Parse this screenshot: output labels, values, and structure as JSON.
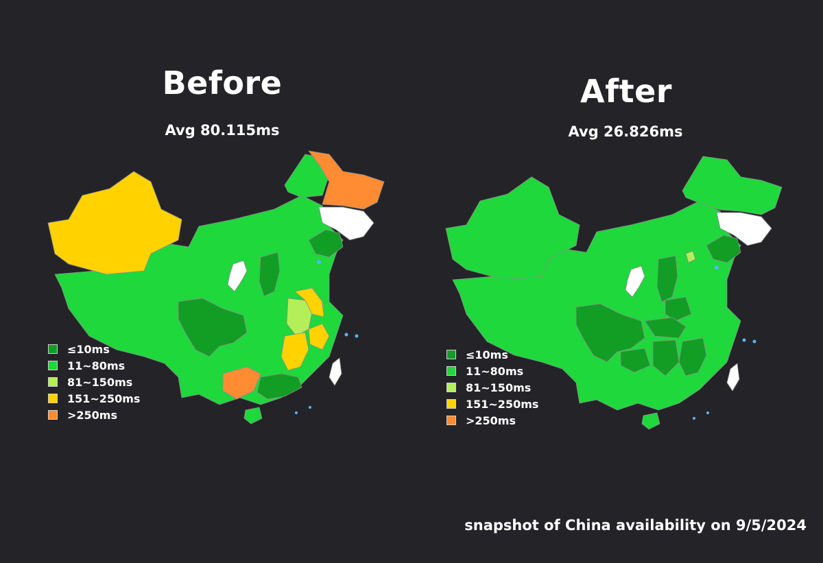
{
  "colors": {
    "le10": "#129d25",
    "c11_80": "#1ed83c",
    "c81_150": "#b4ef5a",
    "c151_250": "#ffd200",
    "gt250": "#ff8c32",
    "nodata": "#ffffff",
    "background": "#242428",
    "border": "#8d8d8d",
    "water": "#5ab4ff"
  },
  "legend": [
    {
      "label": "≤10ms",
      "color": "#129d25"
    },
    {
      "label": "11~80ms",
      "color": "#1ed83c"
    },
    {
      "label": "81~150ms",
      "color": "#b4ef5a"
    },
    {
      "label": "151~250ms",
      "color": "#ffd200"
    },
    {
      "label": ">250ms",
      "color": "#ff8c32"
    }
  ],
  "before": {
    "title": "Before",
    "avg": "Avg 80.115ms",
    "regions": {
      "xinjiang": "151~250ms",
      "heilongjiang": ">250ms",
      "jilin": "no data",
      "ningxia": "no data",
      "sichuan": "≤10ms",
      "shanxi": "≤10ms",
      "liaoning": "≤10ms",
      "guangdong": "≤10ms",
      "anhui": "81~150ms",
      "jiangxi": "151~250ms",
      "zhejiang": "151~250ms",
      "jiangsu": "151~250ms",
      "guangxi": ">250ms"
    }
  },
  "after": {
    "title": "After",
    "avg": "Avg 26.826ms",
    "regions": {
      "jilin": "no data",
      "ningxia": "no data",
      "beijing": "81~150ms",
      "sichuan": "≤10ms",
      "shanxi": "≤10ms",
      "liaoning": "≤10ms",
      "hubei": "≤10ms",
      "hunan": "≤10ms",
      "jiangxi": "≤10ms",
      "guizhou": "≤10ms",
      "henan": "≤10ms",
      "taiwan": "no data"
    }
  },
  "footer": "snapshot of China availability on 9/5/2024"
}
